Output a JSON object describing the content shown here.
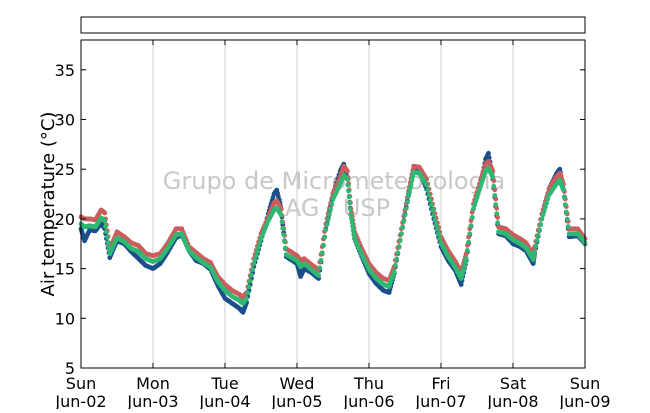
{
  "chart_data": {
    "type": "scatter",
    "title": "",
    "xlabel": "",
    "ylabel": "Air temperature (°C)",
    "watermark": [
      "Grupo de Micrometeorologia",
      "IAG / USP"
    ],
    "x_ticks": [
      {
        "day": "Sun",
        "date": "Jun-02"
      },
      {
        "day": "Mon",
        "date": "Jun-03"
      },
      {
        "day": "Tue",
        "date": "Jun-04"
      },
      {
        "day": "Wed",
        "date": "Jun-05"
      },
      {
        "day": "Thu",
        "date": "Jun-06"
      },
      {
        "day": "Fri",
        "date": "Jun-07"
      },
      {
        "day": "Sat",
        "date": "Jun-08"
      },
      {
        "day": "Sun",
        "date": "Jun-09"
      }
    ],
    "x_range_days": [
      0,
      7
    ],
    "ylim": [
      5,
      38
    ],
    "y_ticks": [
      5,
      10,
      15,
      20,
      25,
      30,
      35
    ],
    "grid": "vertical",
    "legend": "empty-box-top",
    "series": [
      {
        "color": "#1a4f8b",
        "points": [
          [
            0.0,
            19.0
          ],
          [
            0.05,
            17.8
          ],
          [
            0.12,
            18.9
          ],
          [
            0.2,
            18.8
          ],
          [
            0.28,
            19.6
          ],
          [
            0.33,
            19.0
          ],
          [
            0.4,
            16.1
          ],
          [
            0.5,
            17.8
          ],
          [
            0.6,
            17.5
          ],
          [
            0.7,
            16.7
          ],
          [
            0.8,
            16.0
          ],
          [
            0.9,
            15.3
          ],
          [
            1.0,
            15.0
          ],
          [
            1.1,
            15.5
          ],
          [
            1.2,
            16.6
          ],
          [
            1.32,
            18.1
          ],
          [
            1.4,
            18.4
          ],
          [
            1.5,
            16.8
          ],
          [
            1.6,
            15.8
          ],
          [
            1.7,
            15.5
          ],
          [
            1.8,
            14.9
          ],
          [
            1.9,
            13.3
          ],
          [
            2.0,
            12.0
          ],
          [
            2.1,
            11.5
          ],
          [
            2.2,
            11.0
          ],
          [
            2.25,
            10.6
          ],
          [
            2.3,
            11.6
          ],
          [
            2.4,
            15.2
          ],
          [
            2.5,
            17.8
          ],
          [
            2.6,
            20.5
          ],
          [
            2.68,
            22.5
          ],
          [
            2.72,
            22.9
          ],
          [
            2.78,
            21.0
          ],
          [
            2.85,
            16.2
          ],
          [
            3.0,
            15.5
          ],
          [
            3.05,
            14.2
          ],
          [
            3.1,
            15.0
          ],
          [
            3.2,
            14.6
          ],
          [
            3.3,
            14.0
          ],
          [
            3.4,
            19.0
          ],
          [
            3.5,
            22.5
          ],
          [
            3.6,
            24.8
          ],
          [
            3.65,
            25.5
          ],
          [
            3.7,
            24.0
          ],
          [
            3.75,
            20.5
          ],
          [
            3.8,
            18.0
          ],
          [
            3.9,
            16.2
          ],
          [
            4.0,
            14.5
          ],
          [
            4.1,
            13.5
          ],
          [
            4.2,
            12.8
          ],
          [
            4.28,
            12.6
          ],
          [
            4.35,
            14.5
          ],
          [
            4.45,
            18.5
          ],
          [
            4.55,
            22.5
          ],
          [
            4.62,
            25.0
          ],
          [
            4.7,
            24.8
          ],
          [
            4.8,
            23.0
          ],
          [
            4.9,
            20.0
          ],
          [
            5.0,
            17.2
          ],
          [
            5.1,
            15.8
          ],
          [
            5.2,
            14.8
          ],
          [
            5.28,
            13.4
          ],
          [
            5.35,
            15.8
          ],
          [
            5.45,
            21.0
          ],
          [
            5.55,
            23.5
          ],
          [
            5.62,
            26.0
          ],
          [
            5.66,
            26.6
          ],
          [
            5.72,
            24.0
          ],
          [
            5.8,
            18.5
          ],
          [
            5.9,
            18.3
          ],
          [
            6.0,
            17.5
          ],
          [
            6.1,
            17.2
          ],
          [
            6.18,
            16.8
          ],
          [
            6.28,
            15.5
          ],
          [
            6.3,
            16.5
          ],
          [
            6.4,
            20.0
          ],
          [
            6.5,
            23.0
          ],
          [
            6.6,
            24.5
          ],
          [
            6.65,
            25.0
          ],
          [
            6.7,
            23.0
          ],
          [
            6.78,
            18.2
          ],
          [
            6.9,
            18.3
          ],
          [
            7.0,
            17.5
          ]
        ]
      },
      {
        "color": "#cd5c5c",
        "points": [
          [
            0.0,
            20.2
          ],
          [
            0.05,
            20.0
          ],
          [
            0.12,
            20.0
          ],
          [
            0.2,
            19.9
          ],
          [
            0.28,
            20.9
          ],
          [
            0.33,
            20.6
          ],
          [
            0.4,
            17.0
          ],
          [
            0.5,
            18.7
          ],
          [
            0.6,
            18.2
          ],
          [
            0.7,
            17.6
          ],
          [
            0.8,
            17.3
          ],
          [
            0.9,
            16.5
          ],
          [
            1.0,
            16.3
          ],
          [
            1.1,
            16.5
          ],
          [
            1.2,
            17.5
          ],
          [
            1.32,
            19.0
          ],
          [
            1.4,
            19.0
          ],
          [
            1.5,
            17.2
          ],
          [
            1.6,
            16.6
          ],
          [
            1.7,
            16.0
          ],
          [
            1.8,
            15.6
          ],
          [
            1.9,
            14.2
          ],
          [
            2.0,
            13.4
          ],
          [
            2.1,
            12.8
          ],
          [
            2.2,
            12.4
          ],
          [
            2.25,
            12.1
          ],
          [
            2.3,
            12.6
          ],
          [
            2.4,
            16.0
          ],
          [
            2.5,
            18.5
          ],
          [
            2.6,
            20.2
          ],
          [
            2.68,
            21.6
          ],
          [
            2.72,
            21.8
          ],
          [
            2.78,
            21.0
          ],
          [
            2.85,
            17.0
          ],
          [
            3.0,
            16.3
          ],
          [
            3.05,
            15.8
          ],
          [
            3.1,
            16.0
          ],
          [
            3.2,
            15.4
          ],
          [
            3.3,
            14.9
          ],
          [
            3.4,
            19.5
          ],
          [
            3.5,
            22.6
          ],
          [
            3.6,
            24.2
          ],
          [
            3.65,
            25.3
          ],
          [
            3.7,
            24.8
          ],
          [
            3.75,
            21.0
          ],
          [
            3.8,
            18.7
          ],
          [
            3.9,
            17.0
          ],
          [
            4.0,
            15.5
          ],
          [
            4.1,
            14.6
          ],
          [
            4.2,
            14.0
          ],
          [
            4.28,
            13.8
          ],
          [
            4.35,
            15.2
          ],
          [
            4.45,
            19.0
          ],
          [
            4.55,
            22.8
          ],
          [
            4.62,
            25.3
          ],
          [
            4.7,
            25.2
          ],
          [
            4.8,
            24.0
          ],
          [
            4.9,
            21.0
          ],
          [
            5.0,
            18.2
          ],
          [
            5.1,
            16.8
          ],
          [
            5.2,
            15.7
          ],
          [
            5.28,
            14.6
          ],
          [
            5.35,
            16.5
          ],
          [
            5.45,
            21.5
          ],
          [
            5.55,
            23.9
          ],
          [
            5.62,
            25.5
          ],
          [
            5.66,
            25.8
          ],
          [
            5.72,
            24.8
          ],
          [
            5.8,
            19.2
          ],
          [
            5.9,
            19.0
          ],
          [
            6.0,
            18.4
          ],
          [
            6.1,
            18.0
          ],
          [
            6.18,
            17.6
          ],
          [
            6.28,
            16.4
          ],
          [
            6.3,
            17.2
          ],
          [
            6.4,
            20.5
          ],
          [
            6.5,
            23.0
          ],
          [
            6.6,
            24.2
          ],
          [
            6.65,
            24.6
          ],
          [
            6.7,
            23.5
          ],
          [
            6.78,
            19.0
          ],
          [
            6.9,
            19.0
          ],
          [
            7.0,
            18.0
          ]
        ]
      },
      {
        "color": "#2eb872",
        "points": [
          [
            0.0,
            19.5
          ],
          [
            0.05,
            19.2
          ],
          [
            0.12,
            19.3
          ],
          [
            0.2,
            19.2
          ],
          [
            0.28,
            20.1
          ],
          [
            0.33,
            19.8
          ],
          [
            0.4,
            16.5
          ],
          [
            0.5,
            18.1
          ],
          [
            0.6,
            17.7
          ],
          [
            0.7,
            17.0
          ],
          [
            0.8,
            16.7
          ],
          [
            0.9,
            16.0
          ],
          [
            1.0,
            15.7
          ],
          [
            1.1,
            16.0
          ],
          [
            1.2,
            17.0
          ],
          [
            1.32,
            18.4
          ],
          [
            1.4,
            18.5
          ],
          [
            1.5,
            16.8
          ],
          [
            1.6,
            16.1
          ],
          [
            1.7,
            15.6
          ],
          [
            1.8,
            15.1
          ],
          [
            1.9,
            13.7
          ],
          [
            2.0,
            12.8
          ],
          [
            2.1,
            12.2
          ],
          [
            2.2,
            11.8
          ],
          [
            2.25,
            11.5
          ],
          [
            2.3,
            12.0
          ],
          [
            2.4,
            15.5
          ],
          [
            2.5,
            18.0
          ],
          [
            2.6,
            19.8
          ],
          [
            2.68,
            20.9
          ],
          [
            2.72,
            21.1
          ],
          [
            2.78,
            20.4
          ],
          [
            2.85,
            16.4
          ],
          [
            3.0,
            15.8
          ],
          [
            3.05,
            15.2
          ],
          [
            3.1,
            15.5
          ],
          [
            3.2,
            14.9
          ],
          [
            3.3,
            14.3
          ],
          [
            3.4,
            18.9
          ],
          [
            3.5,
            22.0
          ],
          [
            3.6,
            23.5
          ],
          [
            3.65,
            24.4
          ],
          [
            3.7,
            24.0
          ],
          [
            3.75,
            20.4
          ],
          [
            3.8,
            18.1
          ],
          [
            3.9,
            16.4
          ],
          [
            4.0,
            14.9
          ],
          [
            4.1,
            14.0
          ],
          [
            4.2,
            13.4
          ],
          [
            4.28,
            13.2
          ],
          [
            4.35,
            14.7
          ],
          [
            4.45,
            18.5
          ],
          [
            4.55,
            22.3
          ],
          [
            4.62,
            24.7
          ],
          [
            4.7,
            24.6
          ],
          [
            4.8,
            23.4
          ],
          [
            4.9,
            20.4
          ],
          [
            5.0,
            17.6
          ],
          [
            5.1,
            16.2
          ],
          [
            5.2,
            15.1
          ],
          [
            5.28,
            14.0
          ],
          [
            5.35,
            16.0
          ],
          [
            5.45,
            21.0
          ],
          [
            5.55,
            23.3
          ],
          [
            5.62,
            24.8
          ],
          [
            5.66,
            25.1
          ],
          [
            5.72,
            24.2
          ],
          [
            5.8,
            18.7
          ],
          [
            5.9,
            18.5
          ],
          [
            6.0,
            17.9
          ],
          [
            6.1,
            17.5
          ],
          [
            6.18,
            17.1
          ],
          [
            6.28,
            15.9
          ],
          [
            6.3,
            16.7
          ],
          [
            6.4,
            20.0
          ],
          [
            6.5,
            22.4
          ],
          [
            6.6,
            23.5
          ],
          [
            6.65,
            23.9
          ],
          [
            6.7,
            22.9
          ],
          [
            6.78,
            18.5
          ],
          [
            6.9,
            18.5
          ],
          [
            7.0,
            17.6
          ]
        ]
      }
    ]
  }
}
